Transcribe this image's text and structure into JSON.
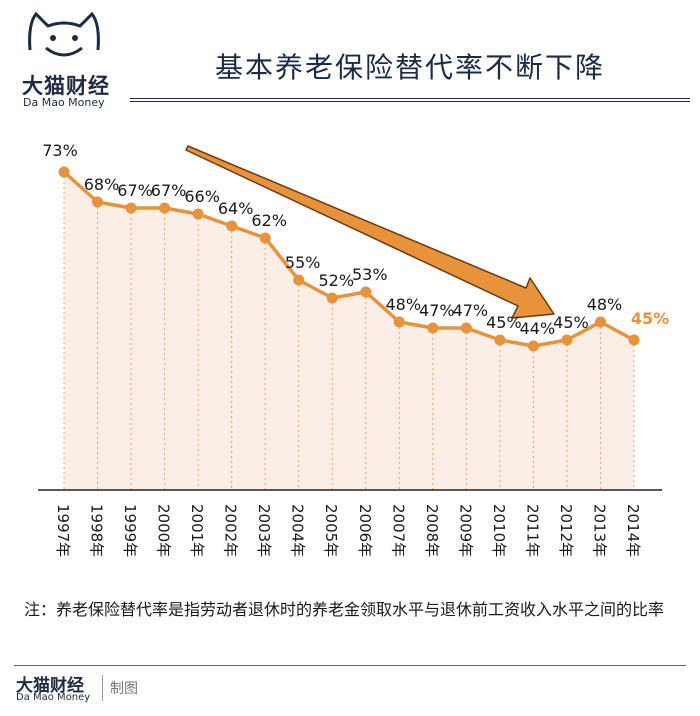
{
  "brand": {
    "name_cn": "大猫财经",
    "name_en": "Da Mao Money",
    "logo_icon": "cat-face-icon"
  },
  "footer": {
    "name_cn": "大猫财经",
    "name_en": "Da Mao Money",
    "made_by": "制图"
  },
  "note": "注：养老保险替代率是指劳动者退休时的养老金领取水平与退休前工资收入水平之间的比率",
  "colors": {
    "accent": "#e8923a",
    "fill": "#fbeee6",
    "highlight_label": "#e8923a",
    "navy": "#1c2a43"
  },
  "chart_data": {
    "type": "line",
    "title": "基本养老保险替代率不断下降",
    "xlabel": "",
    "ylabel": "",
    "categories": [
      "1997年",
      "1998年",
      "1999年",
      "2000年",
      "2001年",
      "2002年",
      "2003年",
      "2004年",
      "2005年",
      "2006年",
      "2007年",
      "2008年",
      "2009年",
      "2010年",
      "2011年",
      "2012年",
      "2013年",
      "2014年"
    ],
    "values": [
      73,
      68,
      67,
      67,
      66,
      64,
      62,
      55,
      52,
      53,
      48,
      47,
      47,
      45,
      44,
      45,
      48,
      45
    ],
    "labels": [
      "73%",
      "68%",
      "67%",
      "67%",
      "66%",
      "64%",
      "62%",
      "55%",
      "52%",
      "53%",
      "48%",
      "47%",
      "47%",
      "45%",
      "44%",
      "45%",
      "48%",
      "45%"
    ],
    "ylim": [
      20,
      75
    ],
    "grid": false,
    "annotation": "downward-trend-arrow",
    "highlight_last": true
  }
}
